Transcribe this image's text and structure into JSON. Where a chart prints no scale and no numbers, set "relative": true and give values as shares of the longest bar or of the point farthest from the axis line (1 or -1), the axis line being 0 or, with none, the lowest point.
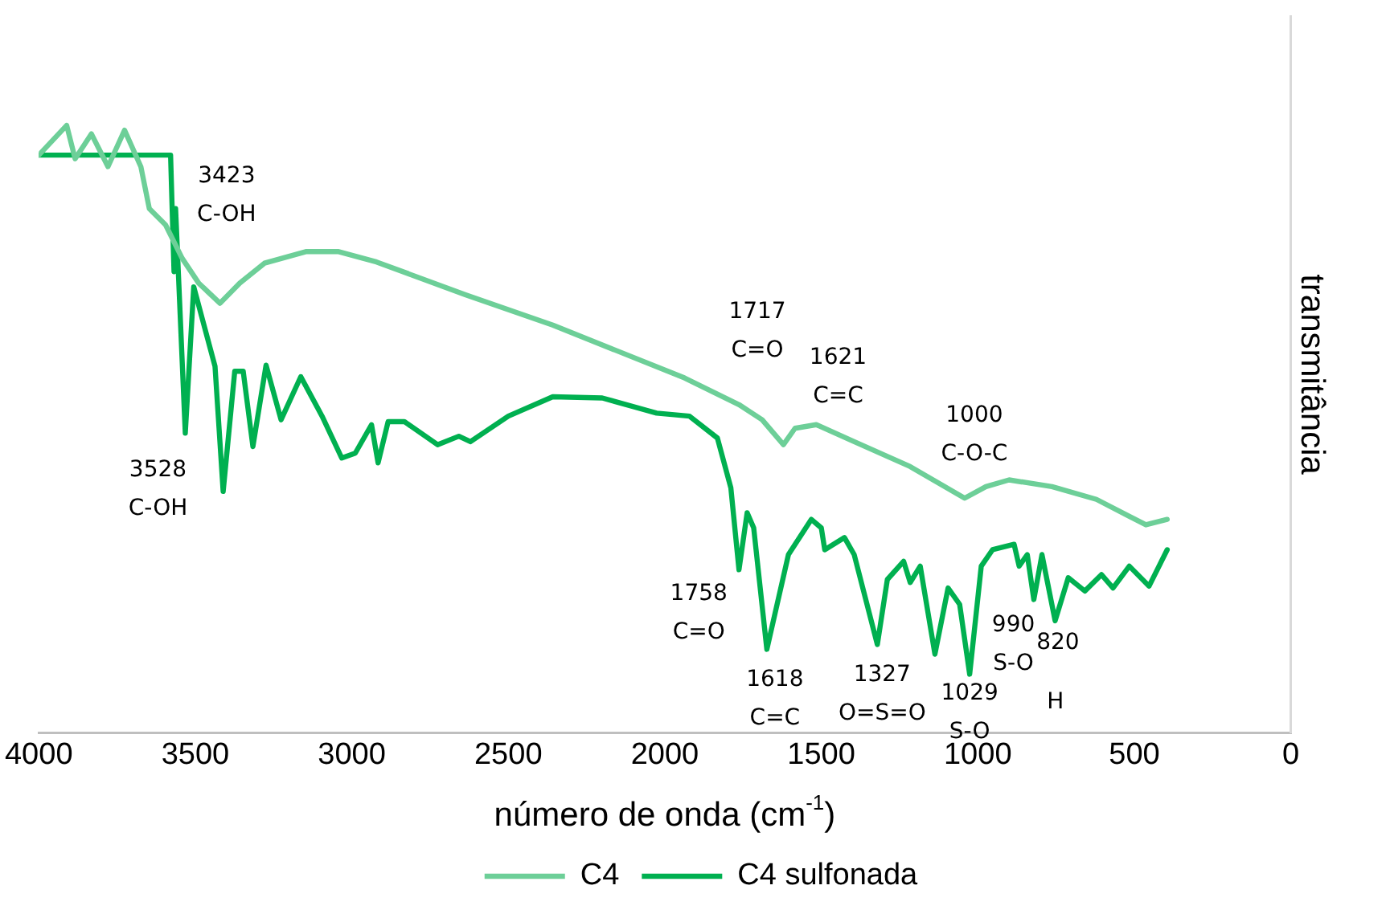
{
  "chart_data": {
    "type": "line",
    "relative": true,
    "xlabel": "número de onda (cm$^{-1}$)",
    "ylabel": "transmitância",
    "xlim": [
      4000,
      0
    ],
    "xticks": [
      4000,
      3500,
      3000,
      2500,
      2000,
      1500,
      1000,
      500,
      0
    ],
    "grid": false,
    "legend": "bottom",
    "marker": "none",
    "line_style": "solid",
    "series": [
      {
        "name": "C4",
        "color": "#6dcf98",
        "x": [
          4000,
          3911,
          3884,
          3832,
          3779,
          3726,
          3674,
          3647,
          3595,
          3542,
          3489,
          3421,
          3358,
          3279,
          3147,
          3042,
          2921,
          2637,
          2358,
          1937,
          1763,
          1689,
          1621,
          1584,
          1516,
          1395,
          1216,
          1042,
          974,
          900,
          763,
          621,
          516,
          463,
          395
        ],
        "values": [
          0.951,
          1,
          0.945,
          0.986,
          0.932,
          0.992,
          0.932,
          0.863,
          0.836,
          0.781,
          0.74,
          0.707,
          0.74,
          0.773,
          0.792,
          0.792,
          0.775,
          0.721,
          0.671,
          0.584,
          0.54,
          0.515,
          0.474,
          0.501,
          0.507,
          0.479,
          0.438,
          0.386,
          0.405,
          0.416,
          0.405,
          0.384,
          0.356,
          0.342,
          0.351
        ]
      },
      {
        "name": "C4 sulfonada",
        "color": "#00b050",
        "x": [
          4000,
          3579,
          3568,
          3563,
          3532,
          3505,
          3437,
          3411,
          3374,
          3347,
          3316,
          3274,
          3226,
          3163,
          3095,
          3032,
          2989,
          2937,
          2916,
          2884,
          2832,
          2726,
          2658,
          2621,
          2500,
          2358,
          2200,
          2026,
          1921,
          1832,
          1789,
          1763,
          1737,
          1716,
          1674,
          1605,
          1532,
          1500,
          1489,
          1426,
          1395,
          1321,
          1289,
          1237,
          1216,
          1184,
          1137,
          1095,
          1058,
          1026,
          989,
          953,
          884,
          868,
          842,
          821,
          795,
          753,
          711,
          658,
          605,
          568,
          516,
          453,
          395
        ],
        "values": [
          0.951,
          0.951,
          0.759,
          0.863,
          0.493,
          0.734,
          0.603,
          0.397,
          0.595,
          0.595,
          0.471,
          0.605,
          0.515,
          0.586,
          0.521,
          0.452,
          0.46,
          0.507,
          0.444,
          0.512,
          0.512,
          0.474,
          0.488,
          0.479,
          0.521,
          0.553,
          0.551,
          0.526,
          0.521,
          0.485,
          0.403,
          0.268,
          0.362,
          0.337,
          0.137,
          0.293,
          0.351,
          0.337,
          0.301,
          0.321,
          0.293,
          0.145,
          0.252,
          0.282,
          0.247,
          0.274,
          0.129,
          0.238,
          0.211,
          0.096,
          0.274,
          0.301,
          0.31,
          0.274,
          0.293,
          0.219,
          0.293,
          0.184,
          0.255,
          0.233,
          0.26,
          0.238,
          0.274,
          0.241,
          0.301
        ]
      }
    ],
    "annotations": [
      "3423\nC-OH",
      {
        "text": "3528\nC-OH",
        "x": 3532,
        "y": 0.493
      },
      {
        "text": "1717\nC=O",
        "x": 1689,
        "y": 0.515
      },
      {
        "text": "1621\nC=C",
        "x": 1621,
        "y": 0.474
      },
      {
        "text": "1000\nC-O-C",
        "x": 1042,
        "y": 0.386
      },
      {
        "text": "1758\nC=O",
        "x": 1763,
        "y": 0.268
      },
      {
        "text": "1618\nC=C",
        "x": 1674,
        "y": 0.137
      },
      {
        "text": "1327\nO=S=O",
        "x": 1321,
        "y": 0.145
      },
      {
        "text": "1029\nS-O",
        "x": 1026,
        "y": 0.096
      },
      {
        "text": "990\nS-O",
        "x": 989,
        "y": 0.274
      },
      {
        "text": "820",
        "x": 821,
        "y": 0.219
      },
      "H"
    ]
  }
}
